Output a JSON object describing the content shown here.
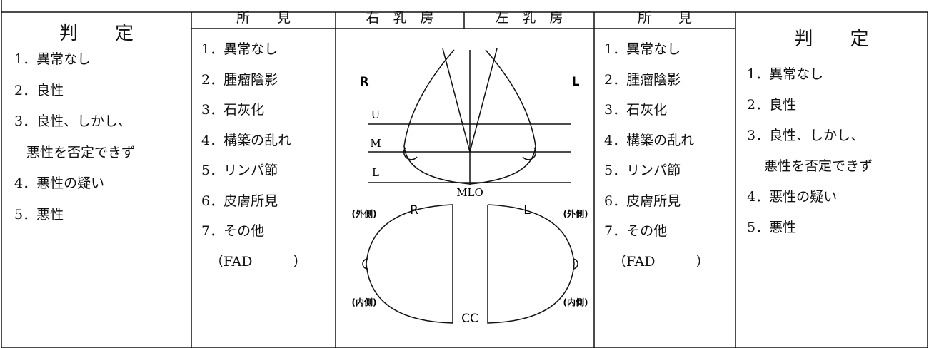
{
  "left_judgment": {
    "title": "判　　定",
    "items": [
      "1．異常なし",
      "2．良性",
      "3．良性、しかし、",
      "悪性を否定できず",
      "4．悪性の疑い",
      "5．悪性"
    ]
  },
  "left_findings": {
    "title": "所　　見",
    "items": [
      "1．異常なし",
      "2．腫瘤陰影",
      "3．石灰化",
      "4．構築の乱れ",
      "5．リンパ節",
      "6．皮膚所見",
      "7．その他",
      "（FAD　　　）"
    ]
  },
  "header": {
    "right_breast": "右　乳　房",
    "left_breast": "左　乳　房"
  },
  "diagram": {
    "mlo": {
      "right": "R",
      "left": "L",
      "upper": "U",
      "middle": "M",
      "lower": "L",
      "label": "MLO"
    },
    "cc": {
      "right": "R",
      "left": "L",
      "right_outer": "(外側)",
      "left_outer": "(外側)",
      "right_inner": "(内側)",
      "left_inner": "(内側)",
      "label": "CC"
    }
  },
  "right_findings": {
    "title": "所　　見",
    "items": [
      "1．異常なし",
      "2．腫瘤陰影",
      "3．石灰化",
      "4．構築の乱れ",
      "5．リンパ節",
      "6．皮膚所見",
      "7．その他",
      "（FAD　　　）"
    ]
  },
  "right_judgment": {
    "title": "判　　定",
    "items": [
      "1．異常なし",
      "2．良性",
      "3．良性、しかし、",
      "悪性を否定できず",
      "4．悪性の疑い",
      "5．悪性"
    ]
  }
}
